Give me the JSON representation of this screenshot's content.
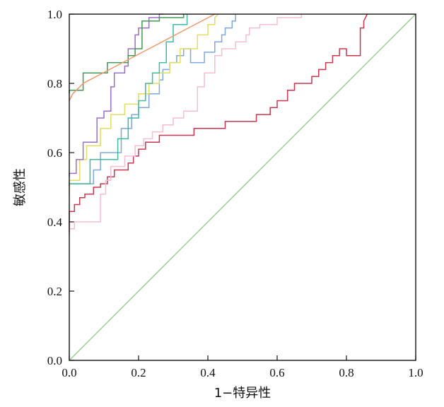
{
  "chart_data": {
    "type": "line",
    "title": "",
    "xlabel": "1−特异性",
    "ylabel": "敏感性",
    "xlim": [
      0,
      1
    ],
    "ylim": [
      0,
      1
    ],
    "x_ticks": [
      "0.0",
      "0.2",
      "0.4",
      "0.6",
      "0.8",
      "1.0"
    ],
    "y_ticks": [
      "0.0",
      "0.2",
      "0.4",
      "0.6",
      "0.8",
      "1.0"
    ],
    "grid": false,
    "legend": "none",
    "series": [
      {
        "color": "#98cf8a",
        "x": [
          0,
          1
        ],
        "y": [
          0,
          1
        ]
      },
      {
        "color": "#c8374f",
        "x": [
          0,
          0,
          0.015,
          0.015,
          0.03,
          0.03,
          0.045,
          0.045,
          0.07,
          0.07,
          0.09,
          0.09,
          0.11,
          0.11,
          0.13,
          0.13,
          0.17,
          0.17,
          0.185,
          0.185,
          0.2,
          0.2,
          0.22,
          0.22,
          0.26,
          0.26,
          0.36,
          0.36,
          0.45,
          0.45,
          0.54,
          0.54,
          0.58,
          0.58,
          0.6,
          0.6,
          0.63,
          0.63,
          0.65,
          0.65,
          0.7,
          0.7,
          0.72,
          0.72,
          0.74,
          0.74,
          0.76,
          0.76,
          0.78,
          0.78,
          0.8,
          0.8,
          0.84,
          0.84,
          0.85,
          0.85,
          0.86
        ],
        "y": [
          0.37,
          0.43,
          0.43,
          0.45,
          0.45,
          0.47,
          0.47,
          0.48,
          0.48,
          0.5,
          0.5,
          0.51,
          0.51,
          0.53,
          0.53,
          0.55,
          0.55,
          0.57,
          0.57,
          0.59,
          0.59,
          0.61,
          0.61,
          0.63,
          0.63,
          0.65,
          0.65,
          0.67,
          0.67,
          0.69,
          0.69,
          0.71,
          0.71,
          0.73,
          0.73,
          0.75,
          0.75,
          0.78,
          0.78,
          0.8,
          0.8,
          0.82,
          0.82,
          0.84,
          0.84,
          0.86,
          0.86,
          0.88,
          0.88,
          0.9,
          0.9,
          0.88,
          0.88,
          0.96,
          0.96,
          0.98,
          1.0
        ]
      },
      {
        "color": "#f6bdd0",
        "x": [
          0,
          0,
          0.015,
          0.015,
          0.09,
          0.09,
          0.105,
          0.105,
          0.12,
          0.12,
          0.16,
          0.16,
          0.19,
          0.19,
          0.215,
          0.215,
          0.24,
          0.24,
          0.27,
          0.27,
          0.3,
          0.3,
          0.33,
          0.33,
          0.37,
          0.37,
          0.39,
          0.39,
          0.42,
          0.42,
          0.44,
          0.44,
          0.48,
          0.48,
          0.51,
          0.51,
          0.52,
          0.52,
          0.55,
          0.55,
          0.6,
          0.6,
          0.67,
          0.67
        ],
        "y": [
          0.36,
          0.38,
          0.38,
          0.4,
          0.4,
          0.48,
          0.48,
          0.52,
          0.52,
          0.56,
          0.56,
          0.59,
          0.59,
          0.62,
          0.62,
          0.64,
          0.64,
          0.66,
          0.66,
          0.68,
          0.68,
          0.7,
          0.7,
          0.72,
          0.72,
          0.79,
          0.79,
          0.83,
          0.83,
          0.88,
          0.88,
          0.9,
          0.9,
          0.92,
          0.92,
          0.94,
          0.94,
          0.96,
          0.96,
          0.97,
          0.97,
          0.99,
          0.99,
          1.0
        ]
      },
      {
        "color": "#7ea8dc",
        "x": [
          0,
          0,
          0.07,
          0.07,
          0.09,
          0.09,
          0.15,
          0.15,
          0.18,
          0.18,
          0.2,
          0.2,
          0.23,
          0.23,
          0.26,
          0.26,
          0.27,
          0.27,
          0.29,
          0.29,
          0.31,
          0.31,
          0.33,
          0.33,
          0.35,
          0.35,
          0.39,
          0.39,
          0.42,
          0.42,
          0.44,
          0.44,
          0.45,
          0.45,
          0.47,
          0.47,
          0.48,
          0.48
        ],
        "y": [
          0.5,
          0.51,
          0.51,
          0.55,
          0.55,
          0.6,
          0.6,
          0.67,
          0.67,
          0.71,
          0.71,
          0.73,
          0.73,
          0.77,
          0.77,
          0.81,
          0.81,
          0.84,
          0.84,
          0.86,
          0.86,
          0.88,
          0.88,
          0.9,
          0.9,
          0.86,
          0.86,
          0.89,
          0.89,
          0.92,
          0.92,
          0.94,
          0.94,
          0.96,
          0.96,
          0.98,
          0.98,
          1.0
        ]
      },
      {
        "color": "#e3dc62",
        "x": [
          0,
          0,
          0.03,
          0.03,
          0.05,
          0.05,
          0.09,
          0.09,
          0.12,
          0.12,
          0.16,
          0.16,
          0.2,
          0.2,
          0.23,
          0.23,
          0.26,
          0.26,
          0.29,
          0.29,
          0.32,
          0.32,
          0.37,
          0.37,
          0.4,
          0.4,
          0.42,
          0.42,
          0.43
        ],
        "y": [
          0.48,
          0.52,
          0.52,
          0.58,
          0.58,
          0.62,
          0.62,
          0.67,
          0.67,
          0.71,
          0.71,
          0.74,
          0.74,
          0.77,
          0.77,
          0.8,
          0.8,
          0.83,
          0.83,
          0.86,
          0.86,
          0.9,
          0.9,
          0.94,
          0.94,
          0.97,
          0.97,
          0.99,
          1.0
        ]
      },
      {
        "color": "#3fb9a6",
        "x": [
          0,
          0,
          0.06,
          0.06,
          0.14,
          0.14,
          0.17,
          0.17,
          0.2,
          0.2,
          0.22,
          0.22,
          0.24,
          0.24,
          0.26,
          0.26,
          0.28,
          0.28,
          0.3,
          0.3,
          0.34,
          0.34
        ],
        "y": [
          0.51,
          0.51,
          0.51,
          0.58,
          0.58,
          0.64,
          0.64,
          0.7,
          0.7,
          0.75,
          0.75,
          0.8,
          0.8,
          0.83,
          0.83,
          0.86,
          0.86,
          0.92,
          0.92,
          0.97,
          0.97,
          1.0
        ]
      },
      {
        "color": "#9b6dc5",
        "x": [
          0,
          0,
          0.02,
          0.02,
          0.04,
          0.04,
          0.08,
          0.08,
          0.1,
          0.1,
          0.12,
          0.12,
          0.13,
          0.13,
          0.16,
          0.16,
          0.17,
          0.17,
          0.19,
          0.19,
          0.2,
          0.2,
          0.23,
          0.23,
          0.26,
          0.26,
          0.27
        ],
        "y": [
          0.53,
          0.54,
          0.54,
          0.58,
          0.58,
          0.63,
          0.63,
          0.7,
          0.7,
          0.72,
          0.72,
          0.79,
          0.79,
          0.83,
          0.83,
          0.85,
          0.85,
          0.9,
          0.9,
          0.94,
          0.94,
          0.96,
          0.96,
          0.99,
          0.99,
          1.0,
          1.0
        ]
      },
      {
        "color": "#3f9a53",
        "x": [
          0,
          0,
          0.04,
          0.04,
          0.11,
          0.11,
          0.17,
          0.17,
          0.19,
          0.19,
          0.21,
          0.21,
          0.26,
          0.26,
          0.33,
          0.33
        ],
        "y": [
          0.77,
          0.78,
          0.78,
          0.83,
          0.83,
          0.86,
          0.86,
          0.88,
          0.88,
          0.9,
          0.9,
          0.98,
          0.98,
          0.99,
          0.99,
          1.0
        ]
      },
      {
        "color": "#f0976a",
        "x": [
          0,
          0.01,
          0.04,
          0.42
        ],
        "y": [
          0.75,
          0.77,
          0.8,
          1.0
        ]
      }
    ]
  }
}
